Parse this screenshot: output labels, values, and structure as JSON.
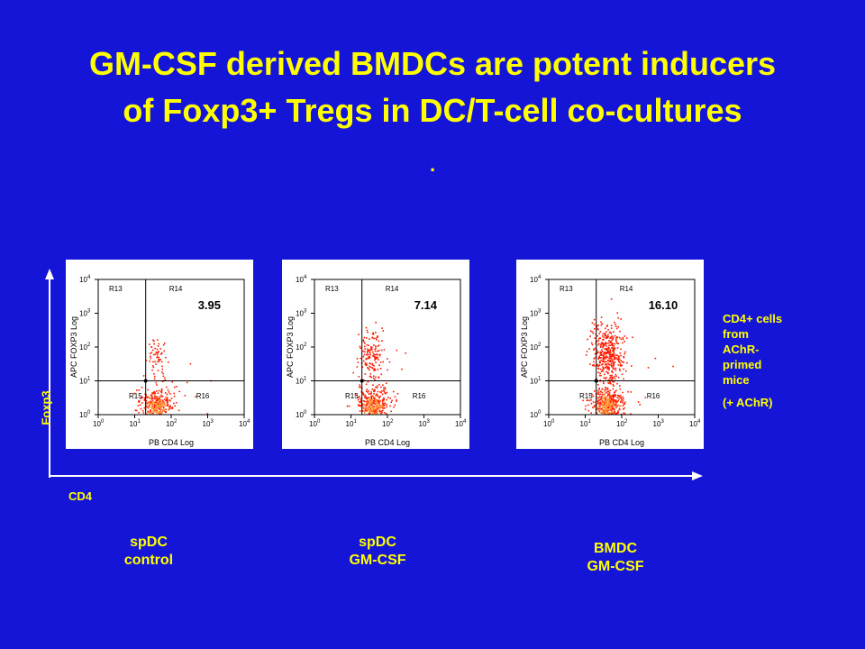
{
  "title": {
    "line1": "GM-CSF derived BMDCs are potent inducers",
    "line2": "of Foxp3+ Tregs in DC/T-cell co-cultures",
    "dot": "."
  },
  "axes": {
    "y_label": "Foxp3",
    "x_label": "CD4"
  },
  "side_note": {
    "lines": [
      "CD4+ cells",
      "from",
      "AChR-",
      "primed",
      "mice"
    ],
    "extra": "(+ AChR)"
  },
  "colors": {
    "background": "#1515d8",
    "text": "#ffff00",
    "events": "#ff1a00",
    "dense_core": "#ffa040"
  },
  "chart_data": [
    {
      "type": "scatter",
      "title": "",
      "xlabel": "PB CD4 Log",
      "ylabel": "APC FOXP3 Log",
      "scale": "log",
      "xlim": [
        1,
        10000
      ],
      "ylim": [
        1,
        10000
      ],
      "x_ticks": [
        "10",
        "10",
        "10",
        "10",
        "10"
      ],
      "x_tick_exp": [
        "0",
        "1",
        "2",
        "3",
        "4"
      ],
      "y_ticks": [
        "10",
        "10",
        "10",
        "10",
        "10"
      ],
      "y_tick_exp": [
        "0",
        "1",
        "2",
        "3",
        "4"
      ],
      "gate": {
        "x": 20,
        "y": 10
      },
      "regions": [
        "R13",
        "R14",
        "R15",
        "R16"
      ],
      "percent_R14": "3.95",
      "condition": [
        "spDC",
        "control"
      ]
    },
    {
      "type": "scatter",
      "title": "",
      "xlabel": "PB CD4 Log",
      "ylabel": "APC FOXP3 Log",
      "scale": "log",
      "xlim": [
        1,
        10000
      ],
      "ylim": [
        1,
        10000
      ],
      "x_ticks": [
        "10",
        "10",
        "10",
        "10",
        "10"
      ],
      "x_tick_exp": [
        "0",
        "1",
        "2",
        "3",
        "4"
      ],
      "y_ticks": [
        "10",
        "10",
        "10",
        "10",
        "10"
      ],
      "y_tick_exp": [
        "0",
        "1",
        "2",
        "3",
        "4"
      ],
      "gate": {
        "x": 20,
        "y": 10
      },
      "regions": [
        "R13",
        "R14",
        "R15",
        "R16"
      ],
      "percent_R14": "7.14",
      "condition": [
        "spDC",
        "GM-CSF"
      ]
    },
    {
      "type": "scatter",
      "title": "",
      "xlabel": "PB CD4 Log",
      "ylabel": "APC FOXP3 Log",
      "scale": "log",
      "xlim": [
        1,
        10000
      ],
      "ylim": [
        1,
        10000
      ],
      "x_ticks": [
        "10",
        "10",
        "10",
        "10",
        "10"
      ],
      "x_tick_exp": [
        "0",
        "1",
        "2",
        "3",
        "4"
      ],
      "y_ticks": [
        "10",
        "10",
        "10",
        "10",
        "10"
      ],
      "y_tick_exp": [
        "0",
        "1",
        "2",
        "3",
        "4"
      ],
      "gate": {
        "x": 20,
        "y": 10
      },
      "regions": [
        "R13",
        "R14",
        "R15",
        "R16"
      ],
      "percent_R14": "16.10",
      "condition": [
        "BMDC",
        "GM-CSF"
      ]
    }
  ]
}
